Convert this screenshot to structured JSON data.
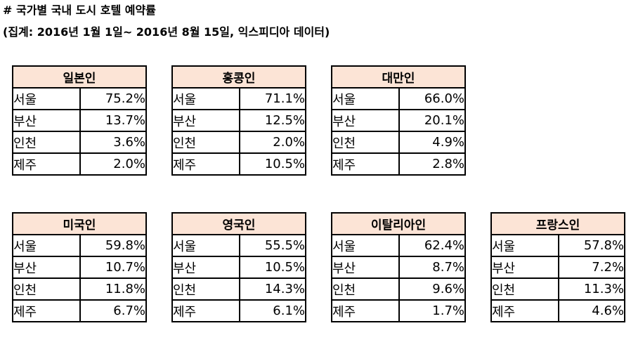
{
  "title_line1": "# 국가별 국내 도시 호텔 예약률",
  "title_line2": "(집계: 2016년 1월 1일~ 2016년 8월 15일, 익스피디아 데이터)",
  "header_bg": "#fce4d6",
  "tables": [
    {
      "country": "일본인",
      "rows": [
        {
          "city": "서울",
          "pct": "75.2%"
        },
        {
          "city": "부산",
          "pct": "13.7%"
        },
        {
          "city": "인천",
          "pct": "3.6%"
        },
        {
          "city": "제주",
          "pct": "2.0%"
        }
      ]
    },
    {
      "country": "홍콩인",
      "rows": [
        {
          "city": "서울",
          "pct": "71.1%"
        },
        {
          "city": "부산",
          "pct": "12.5%"
        },
        {
          "city": "인천",
          "pct": "2.0%"
        },
        {
          "city": "제주",
          "pct": "10.5%"
        }
      ]
    },
    {
      "country": "대만인",
      "rows": [
        {
          "city": "서울",
          "pct": "66.0%"
        },
        {
          "city": "부산",
          "pct": "20.1%"
        },
        {
          "city": "인천",
          "pct": "4.9%"
        },
        {
          "city": "제주",
          "pct": "2.8%"
        }
      ]
    },
    {
      "country": "미국인",
      "rows": [
        {
          "city": "서울",
          "pct": "59.8%"
        },
        {
          "city": "부산",
          "pct": "10.7%"
        },
        {
          "city": "인천",
          "pct": "11.8%"
        },
        {
          "city": "제주",
          "pct": "6.7%"
        }
      ]
    },
    {
      "country": "영국인",
      "rows": [
        {
          "city": "서울",
          "pct": "55.5%"
        },
        {
          "city": "부산",
          "pct": "10.5%"
        },
        {
          "city": "인천",
          "pct": "14.3%"
        },
        {
          "city": "제주",
          "pct": "6.1%"
        }
      ]
    },
    {
      "country": "이탈리아인",
      "rows": [
        {
          "city": "서울",
          "pct": "62.4%"
        },
        {
          "city": "부산",
          "pct": "8.7%"
        },
        {
          "city": "인천",
          "pct": "9.6%"
        },
        {
          "city": "제주",
          "pct": "1.7%"
        }
      ]
    },
    {
      "country": "프랑스인",
      "rows": [
        {
          "city": "서울",
          "pct": "57.8%"
        },
        {
          "city": "부산",
          "pct": "7.2%"
        },
        {
          "city": "인천",
          "pct": "11.3%"
        },
        {
          "city": "제주",
          "pct": "4.6%"
        }
      ]
    }
  ]
}
